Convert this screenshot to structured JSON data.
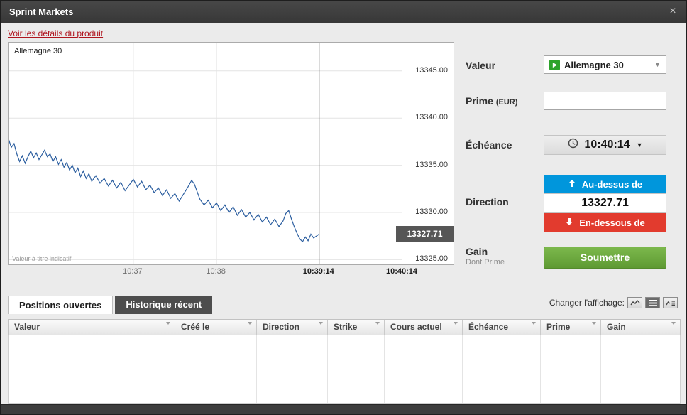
{
  "window": {
    "title": "Sprint Markets",
    "close_label": "×"
  },
  "product_link": {
    "label": "Voir les détails du produit"
  },
  "chart_data": {
    "type": "line",
    "title": "Allemagne 30",
    "disclaimer": "Valeur à titre indicatif",
    "x_total_seconds": 284,
    "x_ticks": [
      {
        "t": 90,
        "label": "10:37",
        "bold": false
      },
      {
        "t": 150,
        "label": "10:38",
        "bold": false
      },
      {
        "t": 224,
        "label": "10:39:14",
        "bold": true
      },
      {
        "t": 284,
        "label": "10:40:14",
        "bold": true
      }
    ],
    "y_ticks": [
      13345.0,
      13340.0,
      13335.0,
      13330.0,
      13325.0
    ],
    "ylim": [
      13324.5,
      13348.0
    ],
    "current_price": 13327.71,
    "points": [
      [
        0,
        13337.8
      ],
      [
        2,
        13336.9
      ],
      [
        4,
        13337.3
      ],
      [
        6,
        13336.2
      ],
      [
        8,
        13335.4
      ],
      [
        10,
        13336.0
      ],
      [
        12,
        13335.2
      ],
      [
        14,
        13335.9
      ],
      [
        16,
        13336.5
      ],
      [
        18,
        13335.8
      ],
      [
        20,
        13336.3
      ],
      [
        22,
        13335.6
      ],
      [
        24,
        13336.1
      ],
      [
        26,
        13336.6
      ],
      [
        28,
        13335.9
      ],
      [
        30,
        13336.2
      ],
      [
        32,
        13335.4
      ],
      [
        34,
        13335.9
      ],
      [
        36,
        13335.1
      ],
      [
        38,
        13335.6
      ],
      [
        40,
        13334.8
      ],
      [
        42,
        13335.3
      ],
      [
        44,
        13334.5
      ],
      [
        46,
        13335.0
      ],
      [
        48,
        13334.2
      ],
      [
        50,
        13334.7
      ],
      [
        52,
        13333.8
      ],
      [
        54,
        13334.4
      ],
      [
        56,
        13333.6
      ],
      [
        58,
        13334.1
      ],
      [
        60,
        13333.3
      ],
      [
        63,
        13333.9
      ],
      [
        66,
        13333.1
      ],
      [
        69,
        13333.6
      ],
      [
        72,
        13332.8
      ],
      [
        75,
        13333.4
      ],
      [
        78,
        13332.6
      ],
      [
        81,
        13333.2
      ],
      [
        84,
        13332.3
      ],
      [
        87,
        13332.9
      ],
      [
        90,
        13333.5
      ],
      [
        93,
        13332.7
      ],
      [
        96,
        13333.3
      ],
      [
        99,
        13332.4
      ],
      [
        102,
        13332.9
      ],
      [
        105,
        13332.1
      ],
      [
        108,
        13332.6
      ],
      [
        111,
        13331.8
      ],
      [
        114,
        13332.4
      ],
      [
        117,
        13331.5
      ],
      [
        120,
        13332.0
      ],
      [
        123,
        13331.2
      ],
      [
        126,
        13331.9
      ],
      [
        129,
        13332.6
      ],
      [
        132,
        13333.4
      ],
      [
        134,
        13333.0
      ],
      [
        136,
        13332.2
      ],
      [
        138,
        13331.4
      ],
      [
        141,
        13330.8
      ],
      [
        144,
        13331.3
      ],
      [
        147,
        13330.5
      ],
      [
        150,
        13331.0
      ],
      [
        153,
        13330.2
      ],
      [
        156,
        13330.8
      ],
      [
        159,
        13330.0
      ],
      [
        162,
        13330.6
      ],
      [
        165,
        13329.7
      ],
      [
        168,
        13330.3
      ],
      [
        171,
        13329.5
      ],
      [
        174,
        13330.0
      ],
      [
        177,
        13329.2
      ],
      [
        180,
        13329.8
      ],
      [
        183,
        13329.0
      ],
      [
        186,
        13329.5
      ],
      [
        189,
        13328.7
      ],
      [
        192,
        13329.3
      ],
      [
        195,
        13328.5
      ],
      [
        198,
        13329.1
      ],
      [
        200,
        13329.9
      ],
      [
        202,
        13330.2
      ],
      [
        204,
        13329.3
      ],
      [
        206,
        13328.5
      ],
      [
        208,
        13327.8
      ],
      [
        210,
        13327.2
      ],
      [
        212,
        13326.9
      ],
      [
        214,
        13327.4
      ],
      [
        216,
        13327.0
      ],
      [
        218,
        13327.7
      ],
      [
        220,
        13327.3
      ],
      [
        222,
        13327.5
      ],
      [
        224,
        13327.71
      ]
    ]
  },
  "form": {
    "valeur": {
      "label": "Valeur",
      "selected": "Allemagne 30"
    },
    "prime": {
      "label": "Prime",
      "unit": "(EUR)",
      "value": ""
    },
    "echeance": {
      "label": "Échéance",
      "value": "10:40:14"
    },
    "direction": {
      "label": "Direction",
      "above_label": "Au-dessus de",
      "strike": "13327.71",
      "below_label": "En-dessous de"
    },
    "gain": {
      "label": "Gain",
      "sublabel": "Dont Prime"
    },
    "submit_label": "Soumettre"
  },
  "bottom": {
    "tabs": [
      {
        "label": "Positions ouvertes",
        "active": true
      },
      {
        "label": "Historique récent",
        "active": false
      }
    ],
    "display_label": "Changer l'affichage:",
    "view_icons": [
      "chart-view",
      "list-view",
      "split-view"
    ],
    "table": {
      "columns": [
        "Valeur",
        "Créé le",
        "Direction",
        "Strike",
        "Cours actuel",
        "Échéance",
        "Prime",
        "Gain"
      ],
      "rows": []
    }
  },
  "colors": {
    "accent_blue": "#0096dc",
    "accent_red": "#e23b2e",
    "accent_green": "#6aa63e",
    "link_red": "#b0161f",
    "price_line": "#2a5d9f",
    "current_price_tag": "#565656"
  }
}
